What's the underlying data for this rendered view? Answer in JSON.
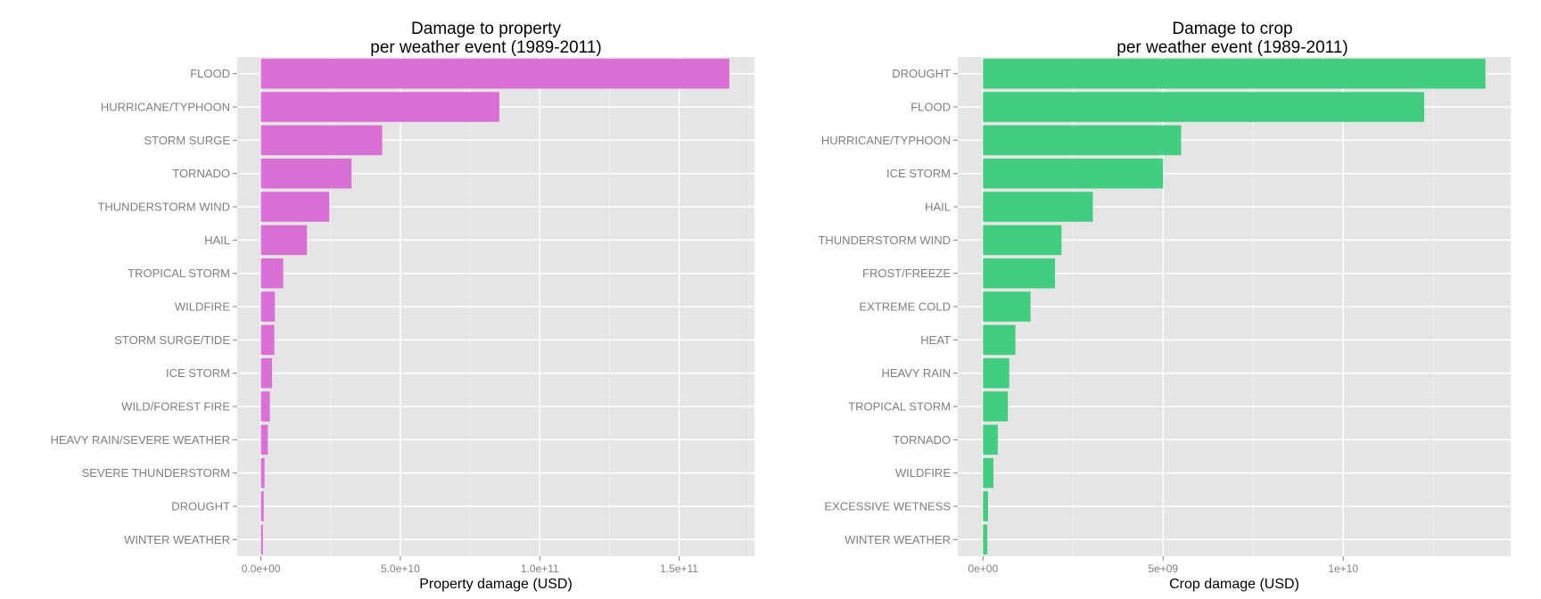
{
  "chart_data": [
    {
      "type": "bar",
      "orientation": "horizontal",
      "title": "Damage to property",
      "subtitle": "per weather event (1989-2011)",
      "xlabel": "Property damage (USD)",
      "ylabel": "",
      "color": "#DA70D6",
      "grid": true,
      "xlim": [
        -8500000000,
        177000000000
      ],
      "xticks": [
        {
          "value": 0,
          "label": "0.0e+00"
        },
        {
          "value": 50000000000,
          "label": "5.0e+10"
        },
        {
          "value": 100000000000,
          "label": "1.0e+11"
        },
        {
          "value": 150000000000,
          "label": "1.5e+11"
        }
      ],
      "categories": [
        "FLOOD",
        "HURRICANE/TYPHOON",
        "STORM SURGE",
        "TORNADO",
        "THUNDERSTORM WIND",
        "HAIL",
        "TROPICAL STORM",
        "WILDFIRE",
        "STORM SURGE/TIDE",
        "ICE STORM",
        "WILD/FOREST FIRE",
        "HEAVY RAIN/SEVERE WEATHER",
        "SEVERE THUNDERSTORM",
        "DROUGHT",
        "WINTER WEATHER"
      ],
      "values": [
        168000000000,
        85500000000,
        43500000000,
        32500000000,
        24500000000,
        16500000000,
        8000000000,
        5000000000,
        4800000000,
        4000000000,
        3200000000,
        2500000000,
        1300000000,
        1000000000,
        700000000
      ]
    },
    {
      "type": "bar",
      "orientation": "horizontal",
      "title": "Damage to crop",
      "subtitle": "per weather event (1989-2011)",
      "xlabel": "Crop damage (USD)",
      "ylabel": "",
      "color": "#43CD80",
      "grid": true,
      "xlim": [
        -700000000,
        14650000000
      ],
      "xticks": [
        {
          "value": 0,
          "label": "0e+00"
        },
        {
          "value": 5000000000,
          "label": "5e+09"
        },
        {
          "value": 10000000000,
          "label": "1e+10"
        }
      ],
      "categories": [
        "DROUGHT",
        "FLOOD",
        "HURRICANE/TYPHOON",
        "ICE STORM",
        "HAIL",
        "THUNDERSTORM WIND",
        "FROST/FREEZE",
        "EXTREME COLD",
        "HEAT",
        "HEAVY RAIN",
        "TROPICAL STORM",
        "TORNADO",
        "WILDFIRE",
        "EXCESSIVE WETNESS",
        "WINTER WEATHER"
      ],
      "values": [
        13950000000,
        12250000000,
        5500000000,
        5000000000,
        3050000000,
        2180000000,
        2000000000,
        1320000000,
        900000000,
        730000000,
        690000000,
        410000000,
        290000000,
        140000000,
        120000000
      ]
    }
  ]
}
